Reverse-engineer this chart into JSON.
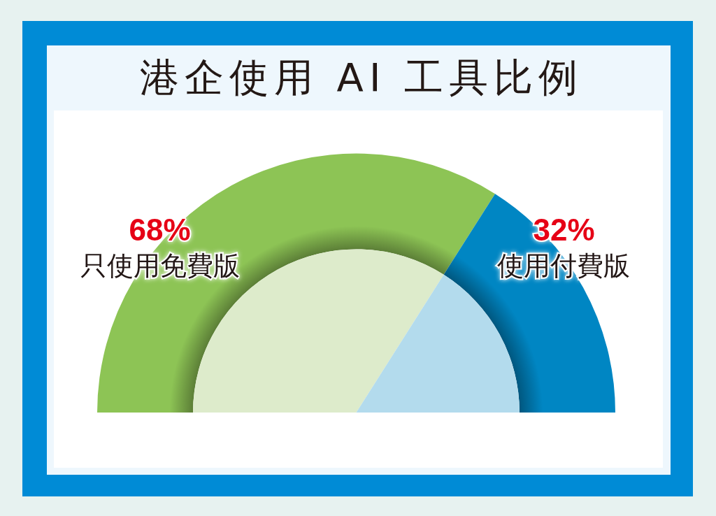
{
  "chart_data": {
    "type": "donut",
    "title": "港企使用 AI 工具比例",
    "categories": [
      "只使用免費版",
      "使用付費版"
    ],
    "series": [
      {
        "values": [
          68,
          32
        ],
        "colors": [
          "#8dc455",
          "#0086c3"
        ],
        "value_labels": [
          "68%",
          "32%"
        ]
      },
      {
        "values": [
          68,
          32
        ],
        "colors": [
          "#ddebcb",
          "#b3dbed"
        ]
      }
    ]
  }
}
